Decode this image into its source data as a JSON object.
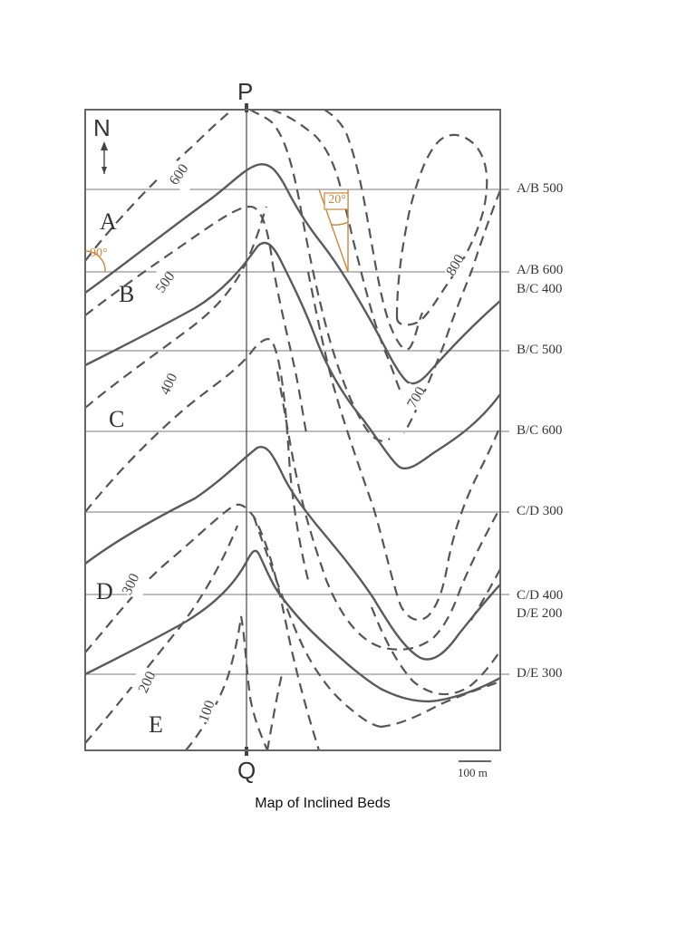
{
  "caption": "Map of Inclined Beds",
  "section_line": {
    "start_label": "P",
    "end_label": "Q"
  },
  "north_arrow": {
    "label": "N",
    "icon": "north-arrow-icon"
  },
  "scale_bar": {
    "label": "100 m"
  },
  "bed_labels": [
    "A",
    "B",
    "C",
    "D",
    "E"
  ],
  "contour_labels": [
    "600",
    "500",
    "400",
    "300",
    "200",
    "100",
    "800",
    "700"
  ],
  "angle_labels": {
    "dip_direction": "90°",
    "strike_angle": "20°"
  },
  "strike_line_labels": [
    {
      "line1": "A/B 500",
      "line2": ""
    },
    {
      "line1": "A/B 600",
      "line2": "B/C 400"
    },
    {
      "line1": "B/C 500",
      "line2": ""
    },
    {
      "line1": "B/C 600",
      "line2": ""
    },
    {
      "line1": "C/D 300",
      "line2": ""
    },
    {
      "line1": "C/D 400",
      "line2": "D/E 200"
    },
    {
      "line1": "D/E 300",
      "line2": ""
    }
  ],
  "colors": {
    "annotation": "#c8873a",
    "ink": "#555555"
  }
}
